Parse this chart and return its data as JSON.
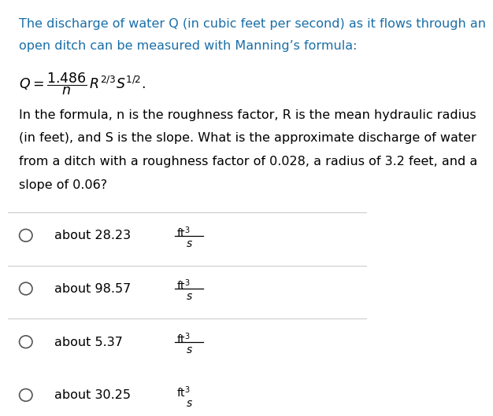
{
  "bg_color": "#ffffff",
  "text_color": "#000000",
  "link_color": "#1a6fa8",
  "title_text_line1": "The discharge of water Q (in cubic feet per second) as it flows through an",
  "title_text_line2": "open ditch can be measured with Manning’s formula:",
  "body_text_line1": "In the formula, n is the roughness factor, R is the mean hydraulic radius",
  "body_text_line2": "(in feet), and S is the slope. What is the approximate discharge of water",
  "body_text_line3": "from a ditch with a roughness factor of 0.028, a radius of 3.2 feet, and a",
  "body_text_line4": "slope of 0.06?",
  "options": [
    {
      "label": "about 28.23"
    },
    {
      "label": "about 98.57"
    },
    {
      "label": "about 5.37"
    },
    {
      "label": "about 30.25"
    }
  ],
  "divider_color": "#cccccc",
  "circle_color": "#555555",
  "font_size_body": 11.5
}
